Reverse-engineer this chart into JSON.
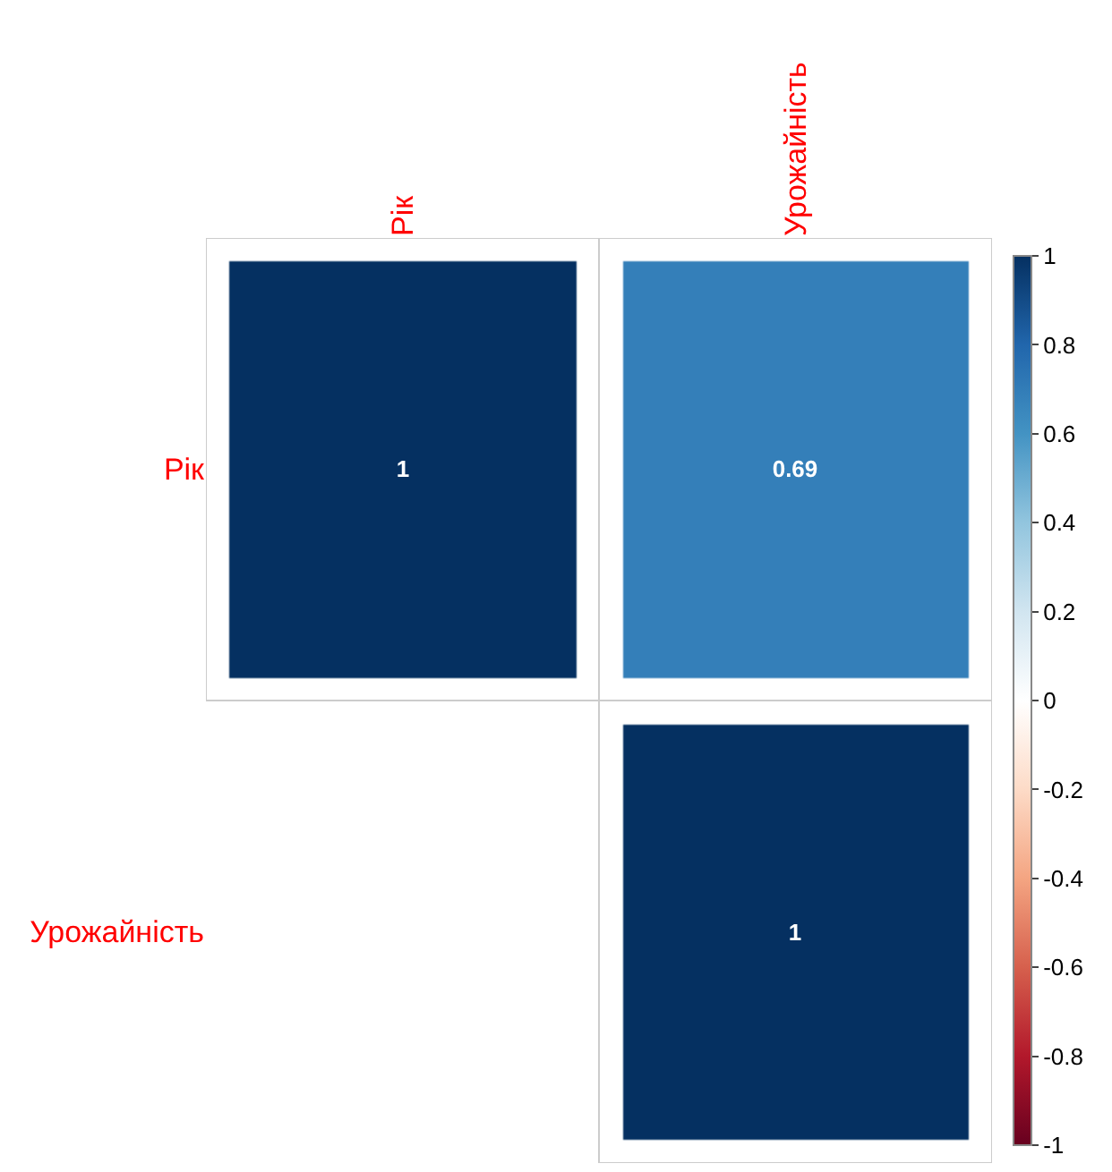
{
  "chart_data": {
    "type": "heatmap",
    "categories": [
      "Рік",
      "Урожайність"
    ],
    "y_categories": [
      "Рік",
      "Урожайність"
    ],
    "cells": [
      [
        1,
        0.69
      ],
      [
        null,
        1
      ]
    ],
    "data_labels": true,
    "clim": [
      -1,
      1
    ],
    "cticks": [
      -1,
      -0.8,
      -0.6,
      -0.4,
      -0.2,
      0,
      0.2,
      0.4,
      0.6,
      0.8,
      1
    ]
  }
}
